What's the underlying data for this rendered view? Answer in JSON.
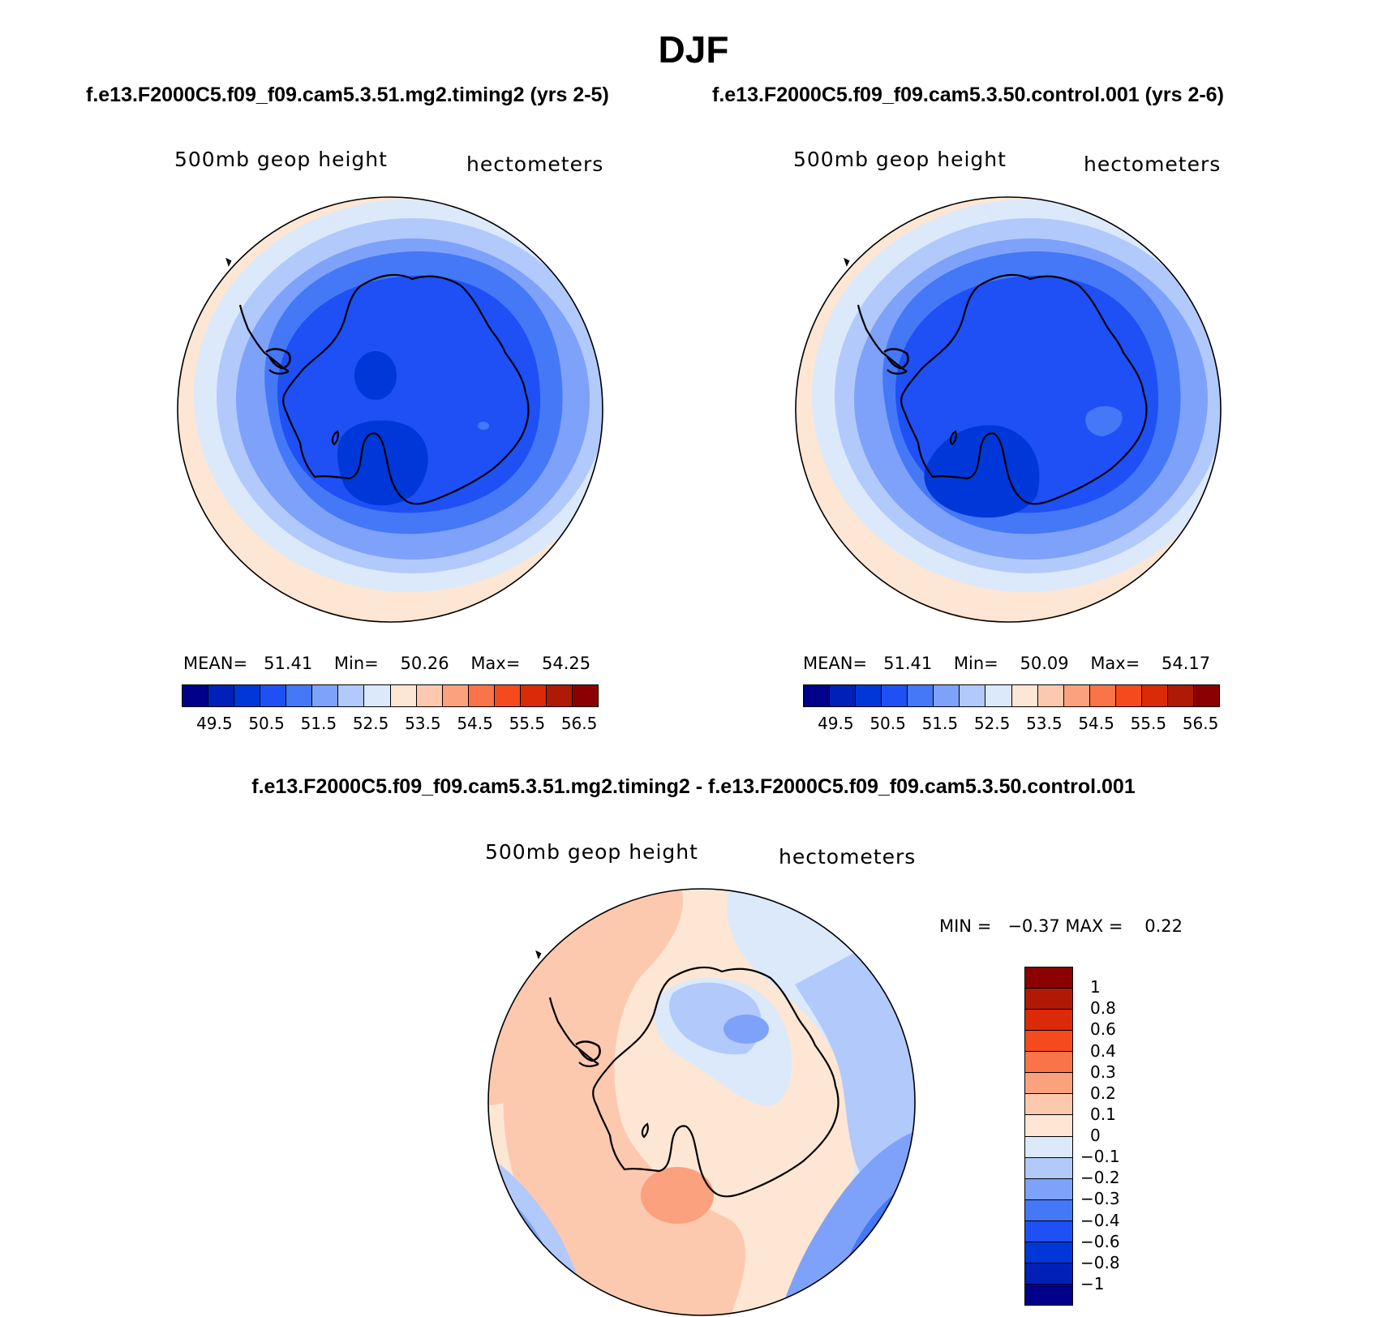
{
  "title": "DJF",
  "panels": [
    {
      "subtitle": "f.e13.F2000C5.f09_f09.cam5.3.51.mg2.timing2 (yrs 2-5)",
      "variable": "500mb geop height",
      "units": "hectometers",
      "stats": {
        "mean_label": "MEAN=",
        "mean": "51.41",
        "min_label": "Min=",
        "min": "50.26",
        "max_label": "Max=",
        "max": "54.25"
      },
      "tick_labels": [
        "49.5",
        "50.5",
        "51.5",
        "52.5",
        "53.5",
        "54.5",
        "55.5",
        "56.5"
      ]
    },
    {
      "subtitle": "f.e13.F2000C5.f09_f09.cam5.3.50.control.001 (yrs 2-6)",
      "variable": "500mb geop height",
      "units": "hectometers",
      "stats": {
        "mean_label": "MEAN=",
        "mean": "51.41",
        "min_label": "Min=",
        "min": "50.09",
        "max_label": "Max=",
        "max": "54.17"
      },
      "tick_labels": [
        "49.5",
        "50.5",
        "51.5",
        "52.5",
        "53.5",
        "54.5",
        "55.5",
        "56.5"
      ]
    }
  ],
  "diff": {
    "subtitle": "f.e13.F2000C5.f09_f09.cam5.3.51.mg2.timing2 - f.e13.F2000C5.f09_f09.cam5.3.50.control.001",
    "variable": "500mb geop height",
    "units": "hectometers",
    "min_label": "MIN =",
    "min": "−0.37",
    "max_label": "MAX =",
    "max": "0.22",
    "colorbar_labels": [
      "1",
      "0.8",
      "0.6",
      "0.4",
      "0.3",
      "0.2",
      "0.1",
      "0",
      "−0.1",
      "−0.2",
      "−0.3",
      "−0.4",
      "−0.6",
      "−0.8",
      "−1"
    ]
  },
  "colors": {
    "scale": [
      "#00008b",
      "#0020b8",
      "#0037d9",
      "#1e50f5",
      "#4478f7",
      "#7ea2f9",
      "#b2c9fb",
      "#dbe9fb",
      "#fde6d3",
      "#fcc9af",
      "#fba17e",
      "#f97448",
      "#f54a1e",
      "#db2a08",
      "#b01905",
      "#8b0000"
    ],
    "diff_scale": [
      "#8b0000",
      "#b01905",
      "#db2a08",
      "#f54a1e",
      "#f97448",
      "#fba17e",
      "#fcc9af",
      "#fde6d3",
      "#dbe9fb",
      "#b2c9fb",
      "#7ea2f9",
      "#4478f7",
      "#1e50f5",
      "#0037d9",
      "#0020b8",
      "#00008b"
    ]
  }
}
